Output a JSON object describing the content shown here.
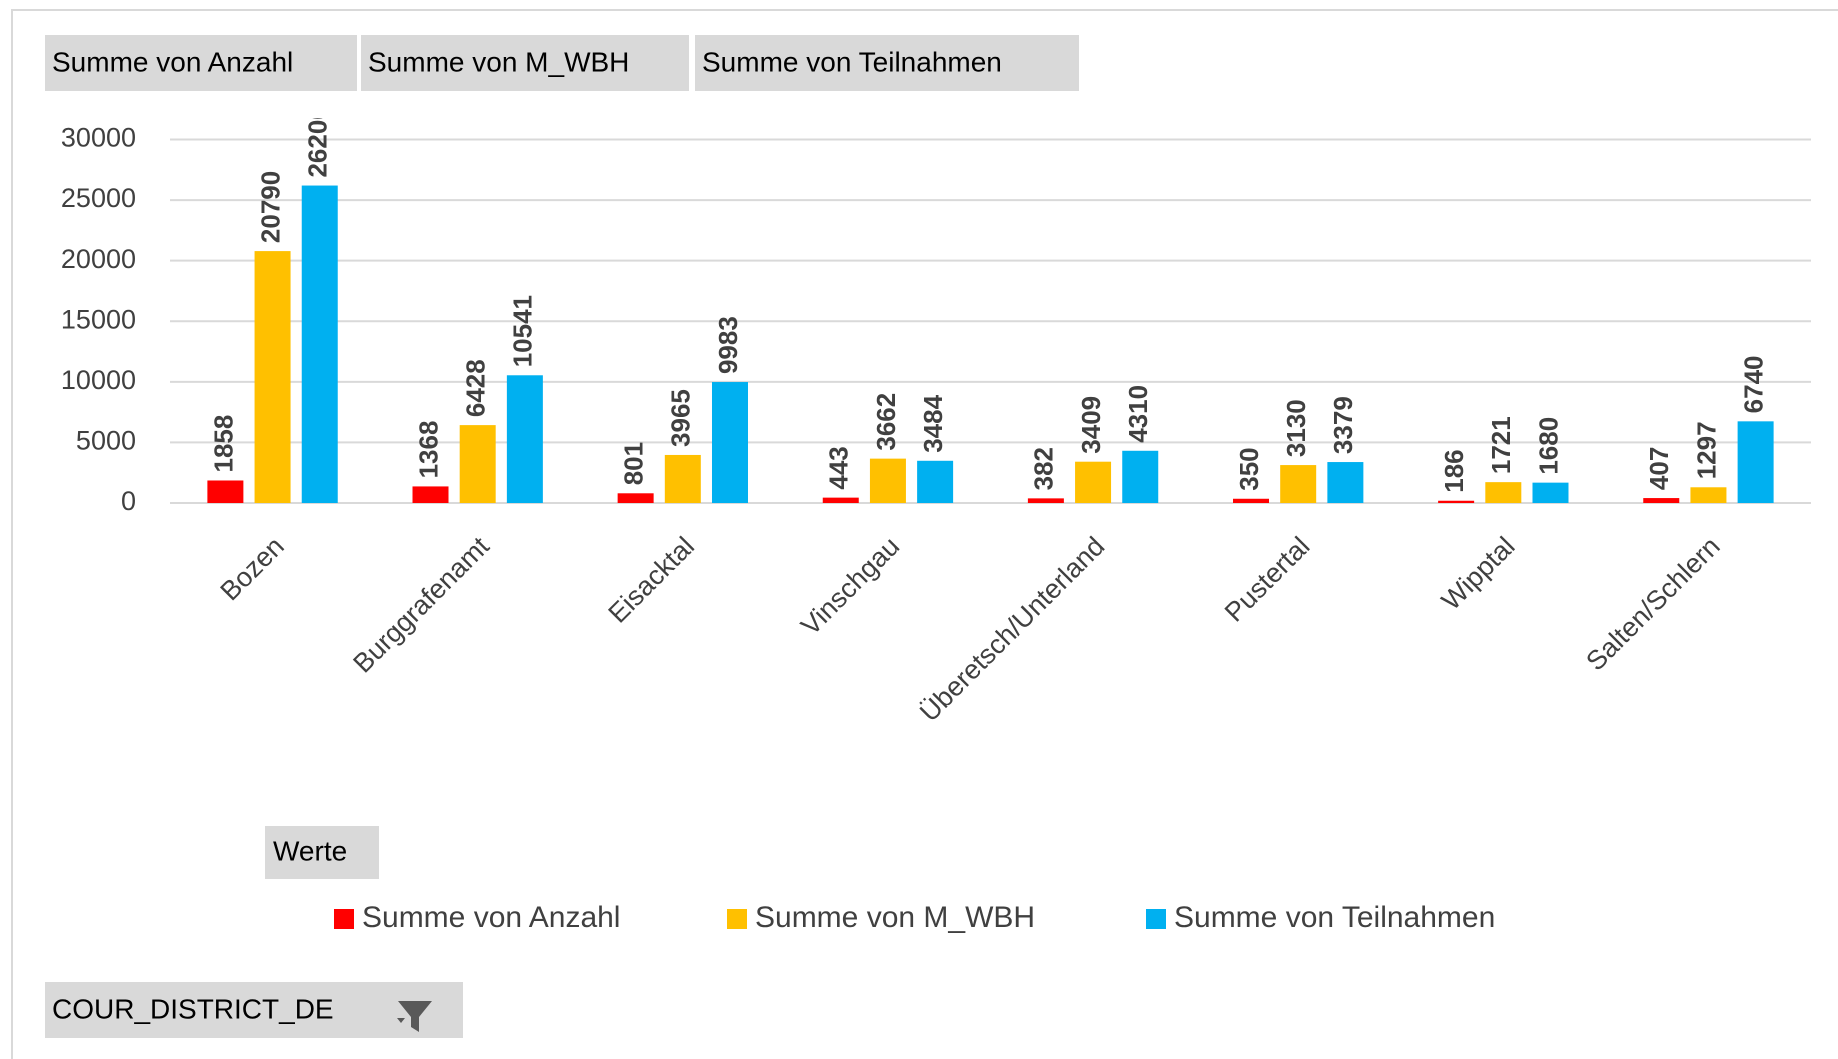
{
  "chart_data": {
    "type": "bar",
    "categories": [
      "Bozen",
      "Burggrafenamt",
      "Eisacktal",
      "Vinschgau",
      "Überetsch/Unterland",
      "Pustertal",
      "Wipptal",
      "Salten/Schlern"
    ],
    "series": [
      {
        "name": "Summe von Anzahl",
        "color": "#ff0000",
        "values": [
          1858,
          1368,
          801,
          443,
          382,
          350,
          186,
          407
        ]
      },
      {
        "name": "Summe von M_WBH",
        "color": "#ffc000",
        "values": [
          20790,
          6428,
          3965,
          3662,
          3409,
          3130,
          1721,
          1297
        ]
      },
      {
        "name": "Summe von Teilnahmen",
        "color": "#00b0f0",
        "values": [
          26200,
          10541,
          9983,
          3484,
          4310,
          3379,
          1680,
          6740
        ]
      }
    ],
    "ylim": [
      0,
      30000
    ],
    "yticks": [
      0,
      5000,
      10000,
      15000,
      20000,
      25000,
      30000
    ],
    "grid": true,
    "legend_title": "Werte",
    "filter_field": "COUR_DISTRICT_DE"
  }
}
